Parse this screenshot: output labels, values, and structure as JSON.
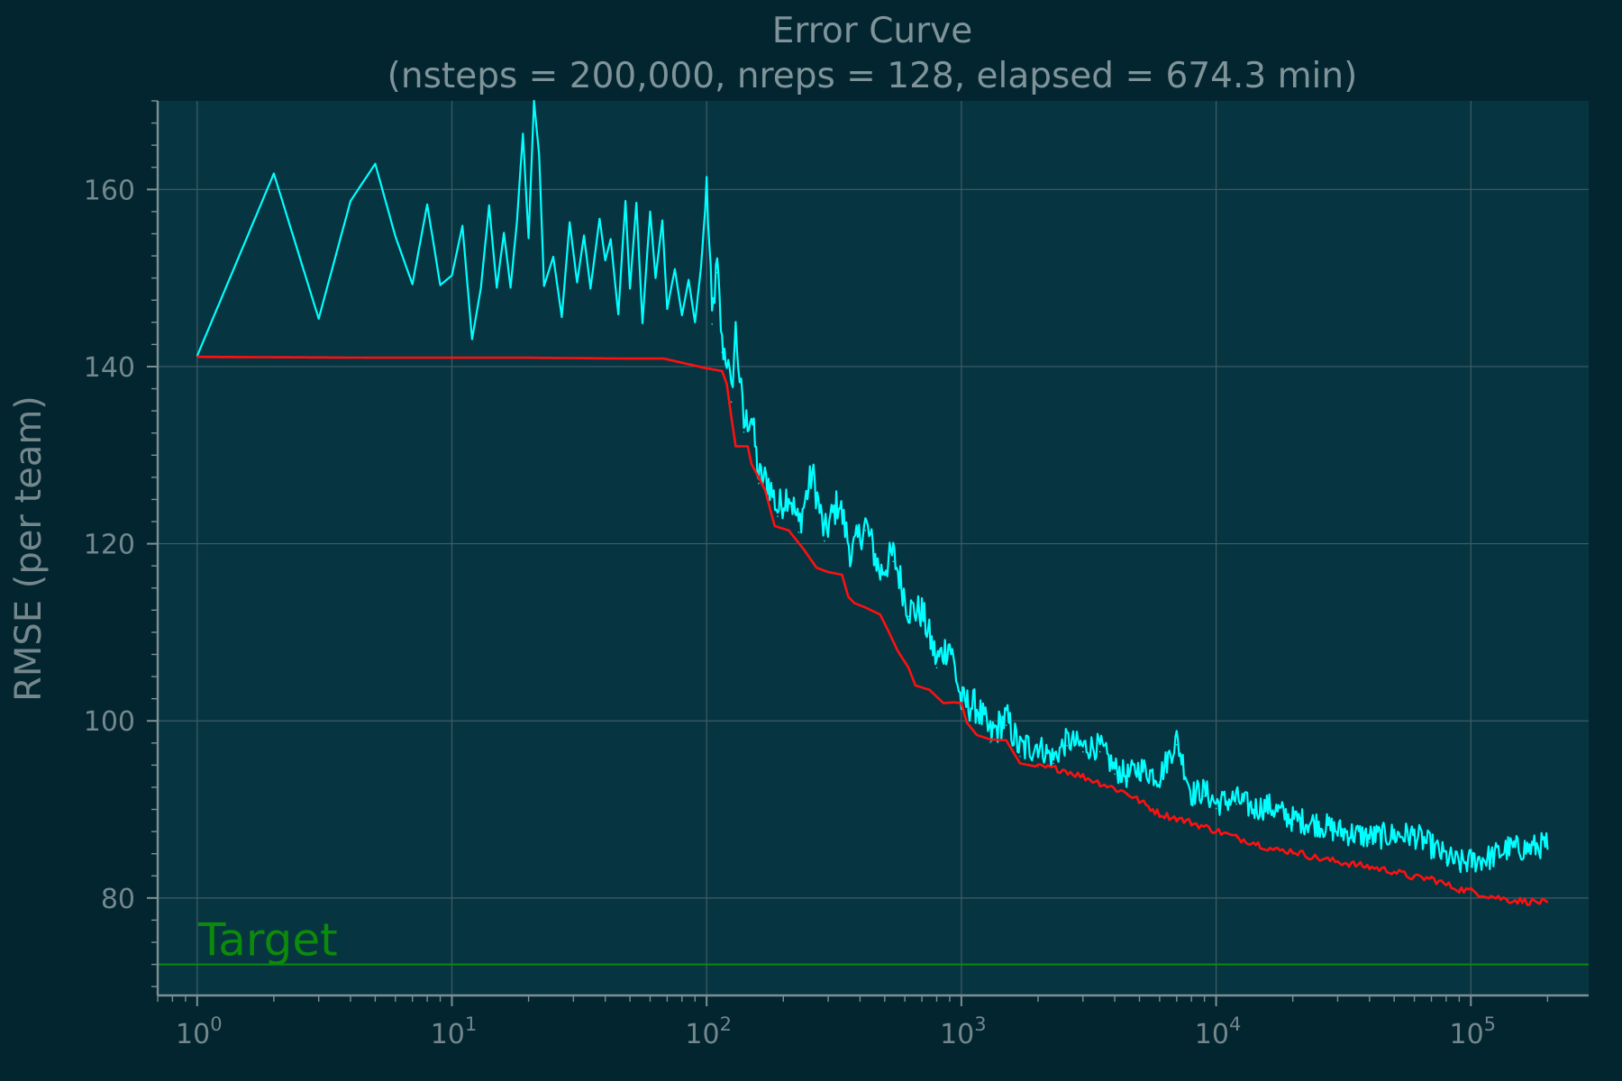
{
  "colors": {
    "page_background": "#022530",
    "plot_background": "#073441",
    "grid": "#3e5d66",
    "axis": "#7e8f93",
    "text": "#7f9399",
    "current_error": "#00ffff",
    "best_error": "#ff1010",
    "target": "#0c8a0c"
  },
  "chart_data": {
    "type": "line",
    "title": "Error Curve",
    "subtitle": "(nsteps = 200,000, nreps = 128, elapsed = 674.3 min)",
    "xlabel": "",
    "ylabel": "RMSE (per team)",
    "x_scale": "log",
    "xlim": [
      0.7,
      290000
    ],
    "ylim": [
      69,
      170
    ],
    "grid": true,
    "x_ticks": [
      {
        "value": 1,
        "base": "10",
        "exp": "0"
      },
      {
        "value": 10,
        "base": "10",
        "exp": "1"
      },
      {
        "value": 100,
        "base": "10",
        "exp": "2"
      },
      {
        "value": 1000,
        "base": "10",
        "exp": "3"
      },
      {
        "value": 10000,
        "base": "10",
        "exp": "4"
      },
      {
        "value": 100000,
        "base": "10",
        "exp": "5"
      }
    ],
    "y_ticks": [
      {
        "value": 80,
        "label": "80"
      },
      {
        "value": 100,
        "label": "100"
      },
      {
        "value": 120,
        "label": "120"
      },
      {
        "value": 140,
        "label": "140"
      },
      {
        "value": 160,
        "label": "160"
      }
    ],
    "target": {
      "value": 72.5,
      "label": "Target"
    },
    "series": [
      {
        "color": "#00ffff",
        "points": [
          [
            1,
            141.2
          ],
          [
            2,
            161.8
          ],
          [
            3,
            145.4
          ],
          [
            4,
            158.7
          ],
          [
            5,
            162.9
          ],
          [
            6,
            154.7
          ],
          [
            7,
            149.3
          ],
          [
            8,
            158.3
          ],
          [
            9,
            149.2
          ],
          [
            10,
            150.3
          ],
          [
            11,
            155.9
          ],
          [
            12,
            143.1
          ],
          [
            13,
            148.9
          ],
          [
            14,
            158.2
          ],
          [
            15,
            148.9
          ],
          [
            16,
            155.1
          ],
          [
            17,
            148.9
          ],
          [
            18,
            156.4
          ],
          [
            19,
            166.3
          ],
          [
            20,
            154.5
          ],
          [
            21,
            170.0
          ],
          [
            22,
            163.9
          ],
          [
            23,
            149.1
          ],
          [
            25,
            152.4
          ],
          [
            27,
            145.6
          ],
          [
            29,
            156.3
          ],
          [
            31,
            149.5
          ],
          [
            33,
            154.8
          ],
          [
            35,
            148.8
          ],
          [
            38,
            156.7
          ],
          [
            40,
            152.0
          ],
          [
            42,
            154.4
          ],
          [
            45,
            145.9
          ],
          [
            48,
            158.7
          ],
          [
            50,
            148.8
          ],
          [
            53,
            158.5
          ],
          [
            56,
            144.9
          ],
          [
            60,
            157.5
          ],
          [
            63,
            150.0
          ],
          [
            67,
            156.5
          ],
          [
            70,
            146.5
          ],
          [
            75,
            151.0
          ],
          [
            80,
            145.8
          ],
          [
            85,
            149.8
          ],
          [
            90,
            145.0
          ],
          [
            95,
            151.2
          ],
          [
            100,
            160.0
          ],
          [
            105,
            144.8
          ],
          [
            110,
            150.6
          ],
          [
            115,
            141.6
          ],
          [
            120,
            140.2
          ],
          [
            125,
            136.0
          ],
          [
            130,
            143.3
          ],
          [
            140,
            132.6
          ],
          [
            150,
            133.8
          ],
          [
            160,
            126.8
          ],
          [
            175,
            126.2
          ],
          [
            190,
            123.1
          ],
          [
            210,
            125.1
          ],
          [
            230,
            121.3
          ],
          [
            260,
            127.2
          ],
          [
            290,
            120.3
          ],
          [
            330,
            124.0
          ],
          [
            370,
            118.0
          ],
          [
            420,
            121.5
          ],
          [
            480,
            115.9
          ],
          [
            540,
            118.0
          ],
          [
            620,
            111.8
          ],
          [
            700,
            111.5
          ],
          [
            800,
            106.0
          ],
          [
            900,
            108.0
          ],
          [
            1000,
            101.3
          ],
          [
            1150,
            100.8
          ],
          [
            1300,
            97.6
          ],
          [
            1500,
            99.5
          ],
          [
            1700,
            96.0
          ],
          [
            2000,
            96.6
          ],
          [
            2300,
            95.2
          ],
          [
            2600,
            97.2
          ],
          [
            3000,
            96.5
          ],
          [
            3500,
            96.5
          ],
          [
            4000,
            94.0
          ],
          [
            4500,
            93.2
          ],
          [
            5000,
            94.1
          ],
          [
            6000,
            93.1
          ],
          [
            7000,
            97.3
          ],
          [
            8000,
            91.2
          ],
          [
            9000,
            91.5
          ],
          [
            10000,
            90.1
          ],
          [
            12000,
            90.6
          ],
          [
            14000,
            89.5
          ],
          [
            16000,
            89.8
          ],
          [
            20000,
            88.3
          ],
          [
            25000,
            87.8
          ],
          [
            30000,
            87.0
          ],
          [
            40000,
            86.3
          ],
          [
            50000,
            86.5
          ],
          [
            60000,
            86.5
          ],
          [
            70000,
            85.3
          ],
          [
            80000,
            84.0
          ],
          [
            90000,
            83.3
          ],
          [
            100000,
            83.6
          ],
          [
            120000,
            84.0
          ],
          [
            140000,
            85.0
          ],
          [
            170000,
            85.0
          ],
          [
            200000,
            85.5
          ]
        ]
      },
      {
        "color": "#ff1010",
        "points": [
          [
            1,
            141.1
          ],
          [
            5,
            141.0
          ],
          [
            10,
            141.0
          ],
          [
            20,
            141.0
          ],
          [
            50,
            140.9
          ],
          [
            68,
            140.9
          ],
          [
            100,
            139.8
          ],
          [
            115,
            139.5
          ],
          [
            120,
            138.0
          ],
          [
            125,
            134.3
          ],
          [
            130,
            131.0
          ],
          [
            145,
            131.0
          ],
          [
            150,
            129.0
          ],
          [
            160,
            127.5
          ],
          [
            170,
            126.0
          ],
          [
            185,
            122.0
          ],
          [
            210,
            121.5
          ],
          [
            240,
            119.4
          ],
          [
            270,
            117.3
          ],
          [
            300,
            116.8
          ],
          [
            340,
            116.5
          ],
          [
            360,
            114.0
          ],
          [
            380,
            113.3
          ],
          [
            420,
            112.8
          ],
          [
            480,
            112.0
          ],
          [
            520,
            110.0
          ],
          [
            560,
            108.0
          ],
          [
            620,
            106.0
          ],
          [
            660,
            104.0
          ],
          [
            750,
            103.5
          ],
          [
            850,
            102.0
          ],
          [
            930,
            102.1
          ],
          [
            1000,
            102.0
          ],
          [
            1050,
            99.8
          ],
          [
            1150,
            98.4
          ],
          [
            1300,
            97.9
          ],
          [
            1500,
            97.8
          ],
          [
            1700,
            95.2
          ],
          [
            2000,
            94.8
          ],
          [
            2500,
            94.5
          ],
          [
            3000,
            93.7
          ],
          [
            3500,
            93.0
          ],
          [
            4500,
            91.8
          ],
          [
            6000,
            89.5
          ],
          [
            7000,
            89.0
          ],
          [
            8000,
            88.5
          ],
          [
            10000,
            87.6
          ],
          [
            12000,
            86.8
          ],
          [
            14000,
            86.3
          ],
          [
            17000,
            85.4
          ],
          [
            20000,
            85.3
          ],
          [
            25000,
            84.5
          ],
          [
            30000,
            84.1
          ],
          [
            40000,
            83.5
          ],
          [
            50000,
            83.0
          ],
          [
            60000,
            82.3
          ],
          [
            70000,
            82.2
          ],
          [
            80000,
            81.5
          ],
          [
            90000,
            81.0
          ],
          [
            100000,
            80.8
          ],
          [
            120000,
            80.2
          ],
          [
            140000,
            79.8
          ],
          [
            170000,
            79.6
          ],
          [
            200000,
            79.5
          ]
        ]
      }
    ]
  }
}
